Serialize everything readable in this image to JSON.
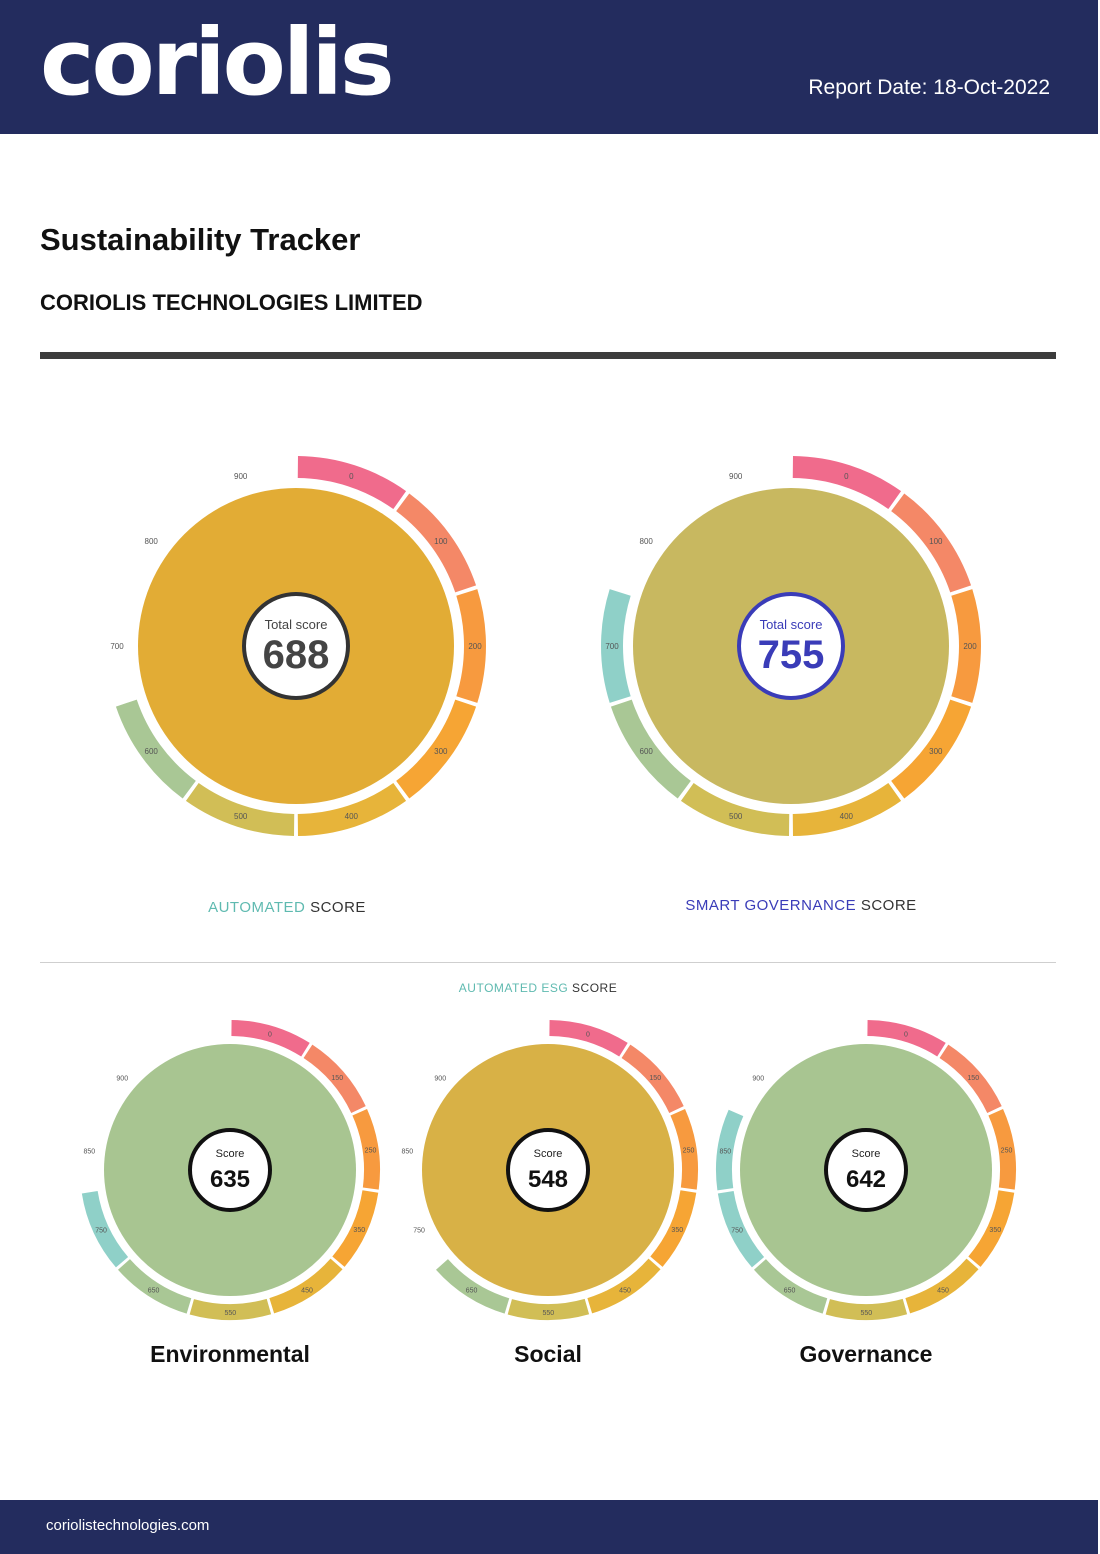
{
  "header": {
    "logo_text": "coriolis",
    "report_date": "Report Date: 18-Oct-2022",
    "bg_color": "#232c5e"
  },
  "title": "Sustainability Tracker",
  "company": "CORIOLIS TECHNOLOGIES LIMITED",
  "gauges_top": [
    {
      "label_total": "Total score",
      "score": "688",
      "score_value": 688,
      "fill_color": "#e2ac35",
      "center_text_color": "#444444",
      "center_border_color": "#333333",
      "caption_part1": "AUTOMATED",
      "caption_part2": "SCORE",
      "caption_part1_color": "#5fbab0",
      "band_labels": [
        "0",
        "100",
        "200",
        "300",
        "400",
        "500",
        "600",
        "700",
        "800",
        "900"
      ]
    },
    {
      "label_total": "Total score",
      "score": "755",
      "score_value": 755,
      "fill_color": "#c8b860",
      "center_text_color": "#3a3cb8",
      "center_border_color": "#3a3cb8",
      "caption_part1": "SMART GOVERNANCE",
      "caption_part2": "SCORE",
      "caption_part1_color": "#3a3cb8",
      "band_labels": [
        "0",
        "100",
        "200",
        "300",
        "400",
        "500",
        "600",
        "700",
        "800",
        "900"
      ]
    }
  ],
  "section_caption_part1": "AUTOMATED ESG",
  "section_caption_part2": "SCORE",
  "gauges_bottom": [
    {
      "label_score": "Score",
      "score": "635",
      "score_value": 635,
      "fill_color": "#a8c591",
      "name": "Environmental",
      "band_labels": [
        "0",
        "150",
        "250",
        "350",
        "450",
        "550",
        "650",
        "750",
        "850",
        "900"
      ]
    },
    {
      "label_score": "Score",
      "score": "548",
      "score_value": 548,
      "fill_color": "#d8b146",
      "name": "Social",
      "band_labels": [
        "0",
        "150",
        "250",
        "350",
        "450",
        "550",
        "650",
        "750",
        "850",
        "900"
      ]
    },
    {
      "label_score": "Score",
      "score": "642",
      "score_value": 642,
      "fill_color": "#a8c591",
      "name": "Governance",
      "band_labels": [
        "0",
        "150",
        "250",
        "350",
        "450",
        "550",
        "650",
        "750",
        "850",
        "900"
      ]
    }
  ],
  "band_colors": [
    "#f06b8c",
    "#f48867",
    "#f79a3f",
    "#f6a534",
    "#e7b43a",
    "#d1be56",
    "#a9c795",
    "#8fd0c8"
  ],
  "footer": {
    "url": "coriolistechnologies.com"
  }
}
